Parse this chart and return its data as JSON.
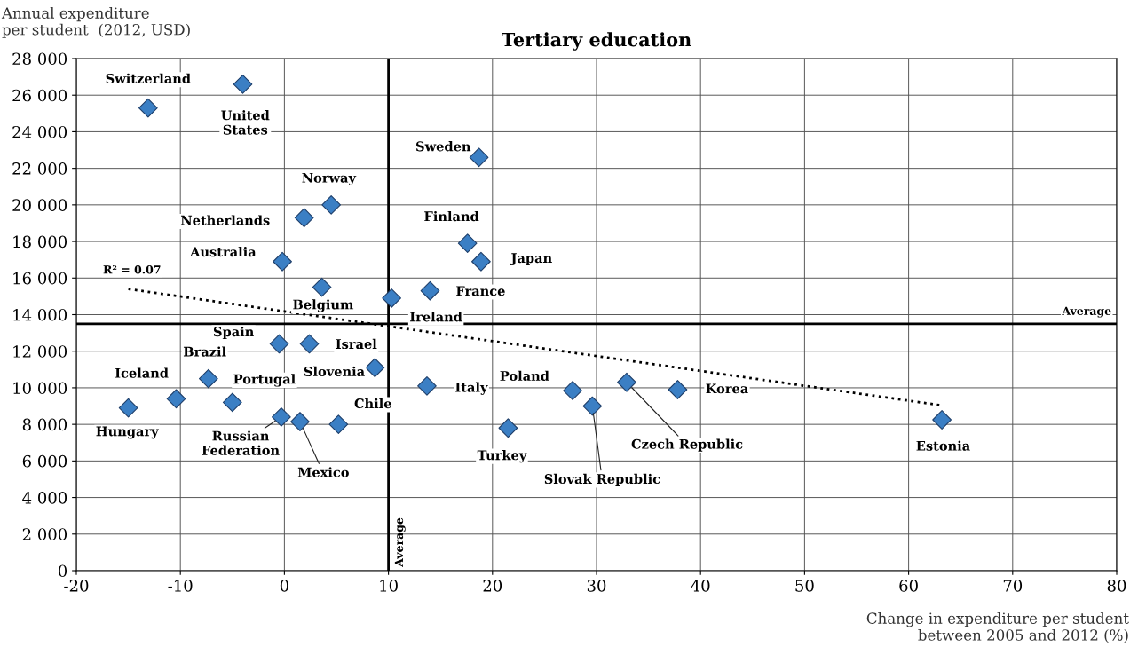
{
  "chart_data": {
    "type": "scatter",
    "title": "Tertiary education",
    "xlabel": "Change in expenditure per student\nbetween 2005 and 2012 (%)",
    "ylabel": "Annual expenditure\nper student  (2012, USD)",
    "xlim": [
      -20,
      80
    ],
    "xticks": [
      -20,
      -10,
      0,
      10,
      20,
      30,
      40,
      50,
      60,
      70,
      80
    ],
    "ylim": [
      0,
      28000
    ],
    "yticks": [
      {
        "value": 0,
        "label": "0"
      },
      {
        "value": 2000,
        "label": "2 000"
      },
      {
        "value": 4000,
        "label": "4 000"
      },
      {
        "value": 6000,
        "label": "6 000"
      },
      {
        "value": 8000,
        "label": "8 000"
      },
      {
        "value": 10000,
        "label": "10 000"
      },
      {
        "value": 12000,
        "label": "12 000"
      },
      {
        "value": 14000,
        "label": "14 000"
      },
      {
        "value": 16000,
        "label": "16 000"
      },
      {
        "value": 18000,
        "label": "18 000"
      },
      {
        "value": 20000,
        "label": "20 000"
      },
      {
        "value": 22000,
        "label": "22 000"
      },
      {
        "value": 24000,
        "label": "24 000"
      },
      {
        "value": 26000,
        "label": "26 000"
      },
      {
        "value": 28000,
        "label": "28 000"
      }
    ],
    "grid": true,
    "marker": "diamond",
    "series": [
      {
        "color": "#3b7fc4",
        "x": [
          -13.1,
          -4.0,
          18.7,
          4.5,
          1.9,
          17.6,
          18.9,
          -0.2,
          3.6,
          10.3,
          14.0,
          -0.5,
          2.4,
          8.7,
          -7.3,
          -10.4,
          -15.0,
          -5.0,
          -0.3,
          1.5,
          5.2,
          13.7,
          21.5,
          27.7,
          29.6,
          32.9,
          37.8,
          63.2
        ],
        "values": [
          25300,
          26600,
          22600,
          20000,
          19300,
          17900,
          16900,
          16900,
          15500,
          14900,
          15300,
          12400,
          12400,
          11100,
          10500,
          9400,
          8900,
          9200,
          8400,
          8150,
          8000,
          10100,
          7800,
          9850,
          9000,
          10300,
          9900,
          8250
        ]
      },
      {
        "type": "line",
        "color": "#000000",
        "line_style": "dotted",
        "marker": "none",
        "x": [
          -15,
          63
        ],
        "values": [
          15400,
          9050
        ]
      }
    ],
    "ref_lines": [
      {
        "axis": "x",
        "value": 10,
        "label": "Average",
        "color": "#000000"
      },
      {
        "axis": "y",
        "value": 13500,
        "label": "Average",
        "color": "#000000"
      }
    ],
    "annotations": [
      {
        "text": "Switzerland",
        "x": -13.1,
        "y": 25300
      },
      {
        "text": "United\nStates",
        "x": -4.0,
        "y": 26600
      },
      {
        "text": "Sweden",
        "x": 18.7,
        "y": 22600
      },
      {
        "text": "Norway",
        "x": 4.5,
        "y": 20000
      },
      {
        "text": "Netherlands",
        "x": 1.9,
        "y": 19300
      },
      {
        "text": "Finland",
        "x": 17.6,
        "y": 17900
      },
      {
        "text": "Japan",
        "x": 18.9,
        "y": 16900
      },
      {
        "text": "Australia",
        "x": -0.2,
        "y": 16900
      },
      {
        "text": "Belgium",
        "x": 3.6,
        "y": 15500
      },
      {
        "text": "Ireland",
        "x": 10.3,
        "y": 14900
      },
      {
        "text": "France",
        "x": 14.0,
        "y": 15300
      },
      {
        "text": "Spain",
        "x": -0.5,
        "y": 12400
      },
      {
        "text": "Israel",
        "x": 2.4,
        "y": 12400
      },
      {
        "text": "Slovenia",
        "x": 8.7,
        "y": 11100
      },
      {
        "text": "Brazil",
        "x": -7.3,
        "y": 10500
      },
      {
        "text": "Iceland",
        "x": -10.4,
        "y": 9400
      },
      {
        "text": "Hungary",
        "x": -15.0,
        "y": 8900
      },
      {
        "text": "Portugal",
        "x": -5.0,
        "y": 9200
      },
      {
        "text": "Russian\nFederation",
        "x": -0.3,
        "y": 8400
      },
      {
        "text": "Mexico",
        "x": 1.5,
        "y": 8150
      },
      {
        "text": "Chile",
        "x": 5.2,
        "y": 8000
      },
      {
        "text": "Italy",
        "x": 13.7,
        "y": 10100
      },
      {
        "text": "Turkey",
        "x": 21.5,
        "y": 7800
      },
      {
        "text": "Poland",
        "x": 27.7,
        "y": 9850
      },
      {
        "text": "Slovak Republic",
        "x": 29.6,
        "y": 9000
      },
      {
        "text": "Czech Republic",
        "x": 32.9,
        "y": 10300
      },
      {
        "text": "Korea",
        "x": 37.8,
        "y": 9900
      },
      {
        "text": "Estonia",
        "x": 63.2,
        "y": 8250
      },
      {
        "text": "R² = 0.07",
        "x": -15,
        "y": 15400
      }
    ]
  }
}
